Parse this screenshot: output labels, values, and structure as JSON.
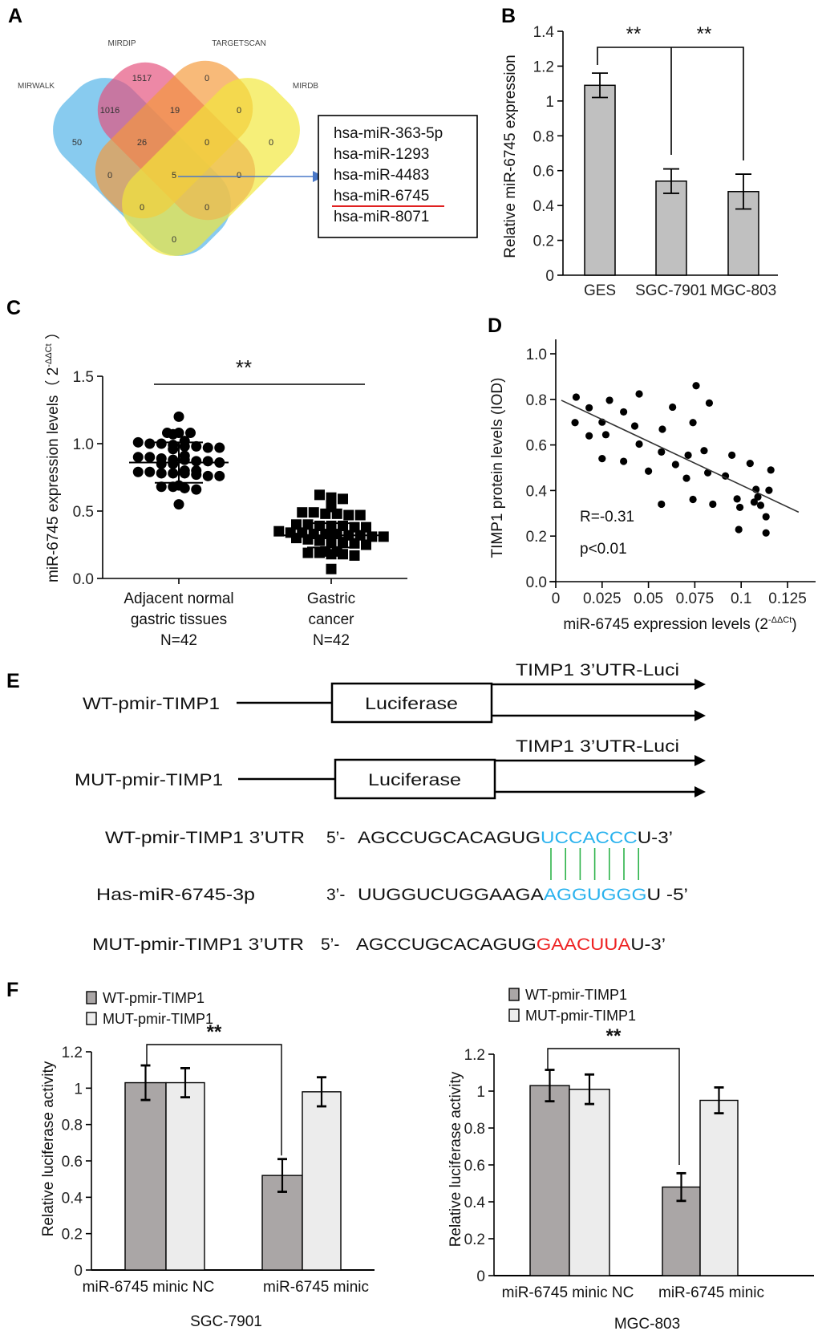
{
  "panel_letters": {
    "a": "A",
    "b": "B",
    "c": "C",
    "d": "D",
    "e": "E",
    "f": "F"
  },
  "venn": {
    "sets": [
      {
        "name": "MIRWALK",
        "color": "#4fb3e8"
      },
      {
        "name": "MIRDIP",
        "color": "#e4507c"
      },
      {
        "name": "TARGETSCAN",
        "color": "#f59a3a"
      },
      {
        "name": "MIRDB",
        "color": "#f2e83a"
      }
    ],
    "regions": [
      "1517",
      "0",
      "1016",
      "19",
      "0",
      "50",
      "26",
      "0",
      "0",
      "0",
      "5",
      "0",
      "0",
      "0",
      "0"
    ],
    "result_list": [
      "hsa-miR-363-5p",
      "hsa-miR-1293",
      "hsa-miR-4483",
      "hsa-miR-6745",
      "hsa-miR-8071"
    ],
    "highlight_color": "#e02020",
    "arrow_color": "#4a78c8"
  },
  "chart_data": [
    {
      "id": "B",
      "type": "bar",
      "title": "",
      "categories": [
        "GES",
        "SGC-7901",
        "MGC-803"
      ],
      "values": [
        1.09,
        0.54,
        0.48
      ],
      "errors": [
        0.07,
        0.07,
        0.1
      ],
      "ylabel": "Relative miR-6745 expression",
      "xlabel": "",
      "ylim": [
        0,
        1.4
      ],
      "yticks": [
        "0",
        "0.2",
        "0.4",
        "0.6",
        "0.8",
        "1",
        "1.2",
        "1.4"
      ],
      "significance": [
        "**",
        "**"
      ],
      "bar_color": "#c0c0c0"
    },
    {
      "id": "C",
      "type": "scatter",
      "categories": [
        {
          "lines": [
            "Adjacent normal",
            "gastric tissues",
            "N=42"
          ]
        },
        {
          "lines": [
            "Gastric",
            "cancer",
            "N=42"
          ]
        }
      ],
      "series": [
        {
          "name": "Adjacent normal gastric tissues",
          "marker": "circle",
          "mean": 0.86,
          "sd": 0.15,
          "values": [
            1.2,
            1.08,
            1.08,
            1.08,
            1.07,
            1.02,
            1.01,
            1.0,
            1.0,
            0.99,
            0.98,
            0.98,
            0.97,
            0.97,
            0.96,
            0.91,
            0.9,
            0.9,
            0.89,
            0.88,
            0.88,
            0.87,
            0.87,
            0.86,
            0.85,
            0.85,
            0.8,
            0.8,
            0.79,
            0.79,
            0.78,
            0.78,
            0.78,
            0.77,
            0.76,
            0.76,
            0.69,
            0.68,
            0.68,
            0.67,
            0.66,
            0.55
          ]
        },
        {
          "name": "Gastric cancer",
          "marker": "square",
          "mean": 0.32,
          "sd": 0.09,
          "values": [
            0.62,
            0.6,
            0.59,
            0.53,
            0.49,
            0.49,
            0.48,
            0.48,
            0.47,
            0.47,
            0.4,
            0.4,
            0.39,
            0.39,
            0.39,
            0.38,
            0.38,
            0.35,
            0.34,
            0.34,
            0.33,
            0.33,
            0.33,
            0.32,
            0.32,
            0.31,
            0.31,
            0.3,
            0.29,
            0.28,
            0.27,
            0.27,
            0.26,
            0.25,
            0.2,
            0.2,
            0.19,
            0.19,
            0.18,
            0.18,
            0.17,
            0.07
          ]
        }
      ],
      "ylabel": "miR-6745 expression levels（ 2",
      "ylabel_sup": "-ΔΔCt",
      "ylabel_end": " ）",
      "ylim": [
        0,
        1.5
      ],
      "yticks": [
        "0.0",
        "0.5",
        "1.0",
        "1.5"
      ],
      "significance": "**"
    },
    {
      "id": "D",
      "type": "scatter",
      "x": [
        0.0104,
        0.011,
        0.018,
        0.018,
        0.025,
        0.025,
        0.027,
        0.029,
        0.0366,
        0.0366,
        0.0426,
        0.045,
        0.045,
        0.05,
        0.057,
        0.0575,
        0.057,
        0.063,
        0.0646,
        0.0705,
        0.0714,
        0.074,
        0.074,
        0.0757,
        0.08,
        0.0828,
        0.082,
        0.0847,
        0.0915,
        0.095,
        0.0978,
        0.0993,
        0.0987,
        0.1048,
        0.108,
        0.109,
        0.107,
        0.1105,
        0.1134,
        0.1134,
        0.115,
        0.116
      ],
      "y": [
        0.698,
        0.81,
        0.763,
        0.64,
        0.7,
        0.54,
        0.645,
        0.796,
        0.745,
        0.528,
        0.683,
        0.824,
        0.604,
        0.485,
        0.569,
        0.669,
        0.34,
        0.766,
        0.514,
        0.454,
        0.555,
        0.698,
        0.361,
        0.86,
        0.575,
        0.784,
        0.478,
        0.34,
        0.464,
        0.555,
        0.363,
        0.326,
        0.229,
        0.519,
        0.405,
        0.372,
        0.349,
        0.335,
        0.285,
        0.214,
        0.401,
        0.49
      ],
      "fit_line": [
        [
          0.003,
          0.796
        ],
        [
          0.131,
          0.305
        ]
      ],
      "annotations": [
        "R=-0.31",
        "p<0.01"
      ],
      "ylabel": "TIMP1  protein levels (IOD)",
      "xlabel": "miR-6745  expression levels (2",
      "xlabel_sup": "-ΔΔCt",
      "xlabel_end": ")",
      "xlim": [
        0,
        0.125
      ],
      "ylim": [
        0,
        1.0
      ],
      "xticks": [
        "0",
        "0.025",
        "0.05",
        "0.075",
        "0.1",
        "0.125"
      ],
      "yticks": [
        "0.0",
        "0.2",
        "0.4",
        "0.6",
        "0.8",
        "1.0"
      ]
    },
    {
      "id": "F-SGC-7901",
      "type": "bar",
      "title": "SGC-7901",
      "categories": [
        "miR-6745  minic NC",
        "miR-6745  minic"
      ],
      "series": [
        {
          "name": "WT-pmir-TIMP1",
          "color": "#aaa6a6",
          "values": [
            1.03,
            0.52
          ],
          "errors": [
            0.095,
            0.09
          ]
        },
        {
          "name": "MUT-pmir-TIMP1",
          "color": "#ececec",
          "values": [
            1.03,
            0.98
          ],
          "errors": [
            0.08,
            0.08
          ]
        }
      ],
      "ylabel": "Relative luciferase activity",
      "ylim": [
        0,
        1.2
      ],
      "yticks": [
        "0",
        "0.2",
        "0.4",
        "0.6",
        "0.8",
        "1",
        "1.2"
      ],
      "significance": "**",
      "legend": "top-left"
    },
    {
      "id": "F-MGC-803",
      "type": "bar",
      "title": "MGC-803",
      "categories": [
        "miR-6745  minic NC",
        "miR-6745  minic"
      ],
      "series": [
        {
          "name": "WT-pmir-TIMP1",
          "color": "#aaa6a6",
          "values": [
            1.03,
            0.48
          ],
          "errors": [
            0.085,
            0.075
          ]
        },
        {
          "name": "MUT-pmir-TIMP1",
          "color": "#ececec",
          "values": [
            1.01,
            0.95
          ],
          "errors": [
            0.08,
            0.07
          ]
        }
      ],
      "ylabel": "Relative luciferase activity",
      "ylim": [
        0,
        1.2
      ],
      "yticks": [
        "0",
        "0.2",
        "0.4",
        "0.6",
        "0.8",
        "1",
        "1.2"
      ],
      "significance": "**",
      "legend": "top-left"
    }
  ],
  "constructs": {
    "wt": {
      "label": "WT-pmir-TIMP1",
      "box": "Luciferase",
      "utr": "TIMP1  3’UTR-Luci"
    },
    "mut": {
      "label": "MUT-pmir-TIMP1",
      "box": "Luciferase",
      "utr": "TIMP1  3’UTR-Luci"
    }
  },
  "sequences": {
    "wt": {
      "label": "WT-pmir-TIMP1 3’UTR",
      "prime": "5’-",
      "pre": "AGCCUGCACAGUG",
      "site": "UCCACCC",
      "post": "U-3’",
      "site_color": "#29b2ee"
    },
    "mirna": {
      "label": "Has-miR-6745-3p",
      "prime": "3’-",
      "pre": "UUGGUCUGGAAGA",
      "site": "AGGUGGG",
      "post": "U  -5’",
      "site_color": "#29b2ee"
    },
    "mut": {
      "label": "MUT-pmir-TIMP1 3’UTR",
      "prime": "5’-",
      "pre": "AGCCUGCACAGUG",
      "site": "GAACUUA",
      "post": "U-3’",
      "site_color": "#ee2222"
    },
    "pairing_color": "#2db34a",
    "pair_count": 7
  }
}
